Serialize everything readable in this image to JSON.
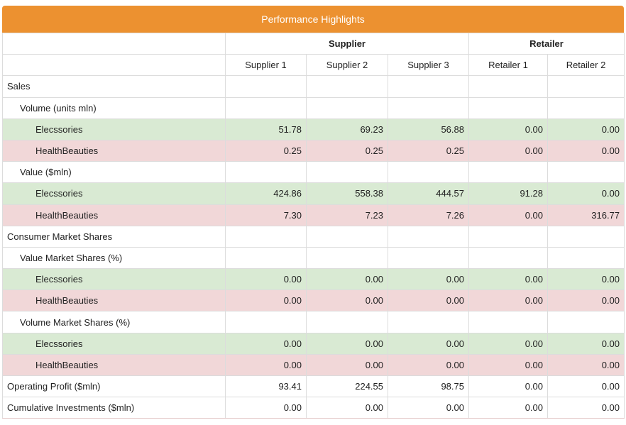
{
  "title": "Performance Highlights",
  "groups": [
    {
      "label": "Supplier",
      "span": 3
    },
    {
      "label": "Retailer",
      "span": 2
    }
  ],
  "columns": [
    "Supplier 1",
    "Supplier 2",
    "Supplier 3",
    "Retailer 1",
    "Retailer 2"
  ],
  "rows": [
    {
      "label": "Sales",
      "level": 0,
      "kind": "section"
    },
    {
      "label": "Volume (units mln)",
      "level": 1,
      "kind": "section"
    },
    {
      "label": "Elecssories",
      "level": 2,
      "kind": "green",
      "values": [
        "51.78",
        "69.23",
        "56.88",
        "0.00",
        "0.00"
      ]
    },
    {
      "label": "HealthBeauties",
      "level": 2,
      "kind": "pink",
      "values": [
        "0.25",
        "0.25",
        "0.25",
        "0.00",
        "0.00"
      ]
    },
    {
      "label": "Value ($mln)",
      "level": 1,
      "kind": "section"
    },
    {
      "label": "Elecssories",
      "level": 2,
      "kind": "green",
      "values": [
        "424.86",
        "558.38",
        "444.57",
        "91.28",
        "0.00"
      ]
    },
    {
      "label": "HealthBeauties",
      "level": 2,
      "kind": "pink",
      "values": [
        "7.30",
        "7.23",
        "7.26",
        "0.00",
        "316.77"
      ]
    },
    {
      "label": "Consumer Market Shares",
      "level": 0,
      "kind": "section"
    },
    {
      "label": "Value Market Shares (%)",
      "level": 1,
      "kind": "section"
    },
    {
      "label": "Elecssories",
      "level": 2,
      "kind": "green",
      "values": [
        "0.00",
        "0.00",
        "0.00",
        "0.00",
        "0.00"
      ]
    },
    {
      "label": "HealthBeauties",
      "level": 2,
      "kind": "pink",
      "values": [
        "0.00",
        "0.00",
        "0.00",
        "0.00",
        "0.00"
      ]
    },
    {
      "label": "Volume Market Shares (%)",
      "level": 1,
      "kind": "section"
    },
    {
      "label": "Elecssories",
      "level": 2,
      "kind": "green",
      "values": [
        "0.00",
        "0.00",
        "0.00",
        "0.00",
        "0.00"
      ]
    },
    {
      "label": "HealthBeauties",
      "level": 2,
      "kind": "pink",
      "values": [
        "0.00",
        "0.00",
        "0.00",
        "0.00",
        "0.00"
      ]
    },
    {
      "label": "Operating Profit ($mln)",
      "level": 0,
      "kind": "plain",
      "values": [
        "93.41",
        "224.55",
        "98.75",
        "0.00",
        "0.00"
      ]
    },
    {
      "label": "Cumulative Investments ($mln)",
      "level": 0,
      "kind": "plain",
      "values": [
        "0.00",
        "0.00",
        "0.00",
        "0.00",
        "0.00"
      ]
    }
  ],
  "colors": {
    "title_bg": "#ec9130",
    "green_row": "#d9ead3",
    "pink_row": "#f1d7d8"
  }
}
